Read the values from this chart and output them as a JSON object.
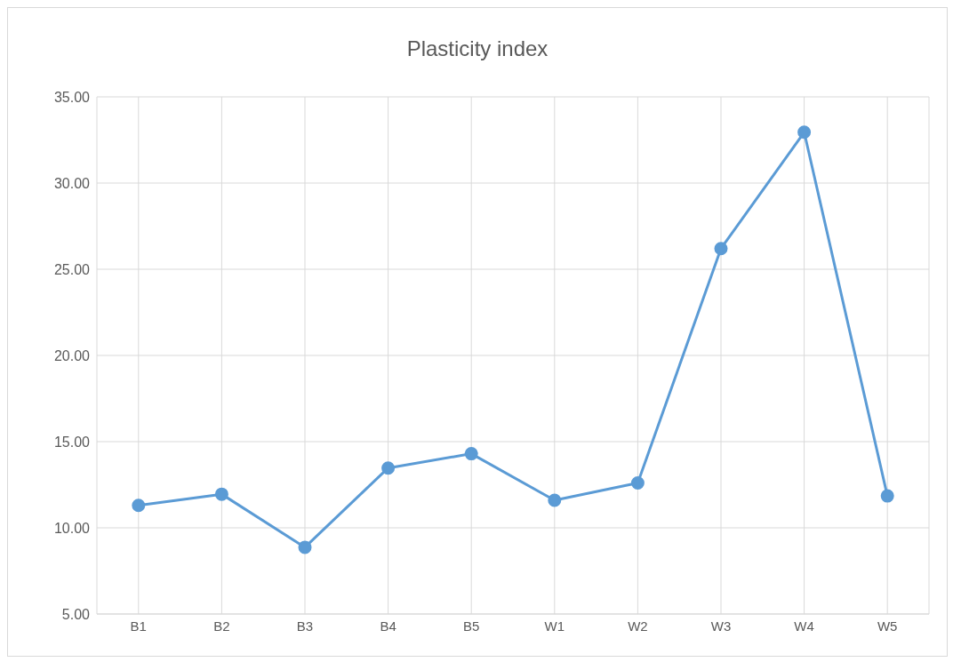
{
  "chart_data": {
    "type": "line",
    "title": "Plasticity index",
    "categories": [
      "B1",
      "B2",
      "B3",
      "B4",
      "B5",
      "W1",
      "W2",
      "W3",
      "W4",
      "W5"
    ],
    "series": [
      {
        "color": "#5b9bd5",
        "values": [
          11.3,
          11.95,
          8.87,
          13.47,
          14.3,
          11.6,
          12.6,
          26.2,
          32.95,
          11.85
        ]
      }
    ],
    "ylim": [
      5,
      35
    ],
    "yticks": [
      {
        "value": 5,
        "label": "5.00"
      },
      {
        "value": 10,
        "label": "10.00"
      },
      {
        "value": 15,
        "label": "15.00"
      },
      {
        "value": 20,
        "label": "20.00"
      },
      {
        "value": 25,
        "label": "25.00"
      },
      {
        "value": 30,
        "label": "30.00"
      },
      {
        "value": 35,
        "label": "35.00"
      }
    ],
    "grid": true,
    "marker": "circle",
    "legend": false
  }
}
